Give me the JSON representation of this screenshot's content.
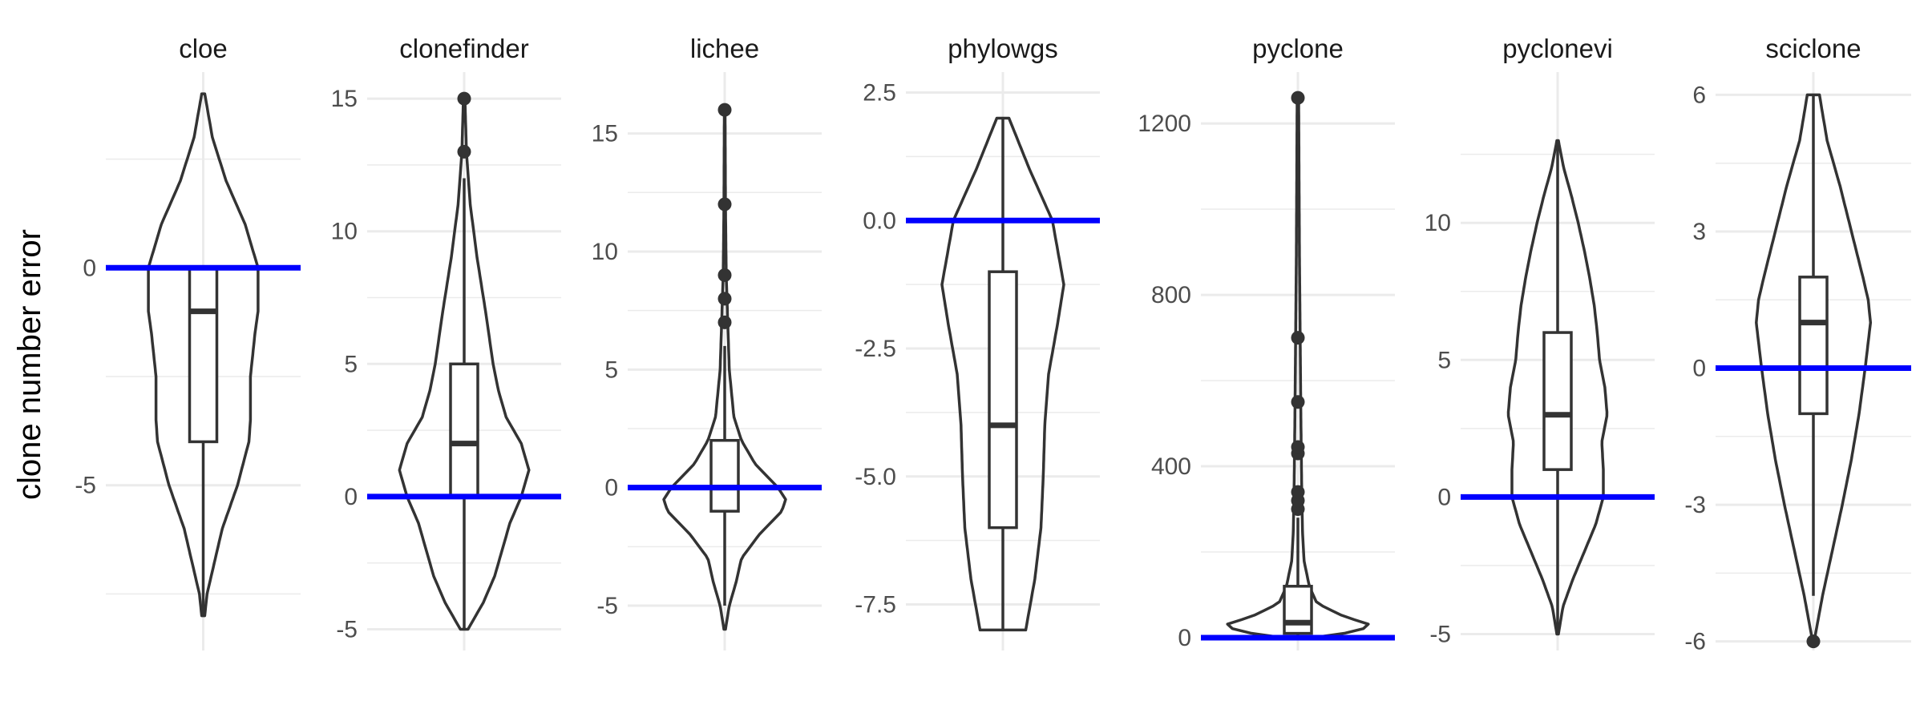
{
  "chart_data": {
    "type": "violin",
    "ylabel": "clone number error",
    "reference_line": {
      "y": 0,
      "color": "#0000ff"
    },
    "colors": {
      "outline": "#333333",
      "grid": "#ebebeb"
    },
    "grid": true,
    "facets": [
      {
        "name": "cloe",
        "ylim": [
          -8.8,
          4.5
        ],
        "ticks": [
          0,
          -5
        ],
        "tick_labels": [
          "0",
          "-5"
        ],
        "minor_ticks": [
          2.5,
          -2.5,
          -7.5
        ],
        "violin": {
          "min": -8,
          "max": 4,
          "profile": [
            [
              -8,
              0.02
            ],
            [
              -7.5,
              0.05
            ],
            [
              -6,
              0.25
            ],
            [
              -5,
              0.45
            ],
            [
              -4,
              0.6
            ],
            [
              -3.5,
              0.62
            ],
            [
              -2.5,
              0.62
            ],
            [
              -1.5,
              0.68
            ],
            [
              -1,
              0.72
            ],
            [
              0,
              0.72
            ],
            [
              1,
              0.55
            ],
            [
              2,
              0.3
            ],
            [
              3,
              0.12
            ],
            [
              4,
              0.02
            ]
          ]
        },
        "box": {
          "q1": -4,
          "median": -1,
          "q3": 0,
          "lower": -8,
          "upper": 0
        },
        "outliers": []
      },
      {
        "name": "clonefinder",
        "ylim": [
          -5.8,
          16
        ],
        "ticks": [
          15,
          10,
          5,
          0,
          -5
        ],
        "tick_labels": [
          "15",
          "10",
          "5",
          "0",
          "-5"
        ],
        "minor_ticks": [
          12.5,
          7.5,
          2.5,
          -2.5
        ],
        "violin": {
          "min": -5,
          "max": 15,
          "profile": [
            [
              -5,
              0.05
            ],
            [
              -4,
              0.25
            ],
            [
              -3,
              0.4
            ],
            [
              -2,
              0.5
            ],
            [
              -1,
              0.6
            ],
            [
              0,
              0.75
            ],
            [
              1,
              0.85
            ],
            [
              2,
              0.75
            ],
            [
              3,
              0.55
            ],
            [
              4,
              0.45
            ],
            [
              5,
              0.38
            ],
            [
              7,
              0.28
            ],
            [
              9,
              0.17
            ],
            [
              11,
              0.08
            ],
            [
              13,
              0.03
            ],
            [
              15,
              0.01
            ]
          ]
        },
        "box": {
          "q1": 0,
          "median": 2,
          "q3": 5,
          "lower": -5,
          "upper": 12
        },
        "outliers": [
          13,
          15
        ]
      },
      {
        "name": "lichee",
        "ylim": [
          -6.9,
          17.6
        ],
        "ticks": [
          15,
          10,
          5,
          0,
          -5
        ],
        "tick_labels": [
          "15",
          "10",
          "5",
          "0",
          "-5"
        ],
        "minor_ticks": [
          12.5,
          7.5,
          2.5,
          -2.5
        ],
        "violin": {
          "min": -6,
          "max": 16,
          "profile": [
            [
              -6,
              0.01
            ],
            [
              -5,
              0.06
            ],
            [
              -4,
              0.15
            ],
            [
              -3,
              0.22
            ],
            [
              -2,
              0.45
            ],
            [
              -1,
              0.75
            ],
            [
              -0.5,
              0.8
            ],
            [
              0,
              0.7
            ],
            [
              1,
              0.4
            ],
            [
              2,
              0.22
            ],
            [
              3,
              0.12
            ],
            [
              5,
              0.06
            ],
            [
              7,
              0.04
            ],
            [
              9,
              0.02
            ],
            [
              12,
              0.01
            ],
            [
              16,
              0.005
            ]
          ]
        },
        "box": {
          "q1": -1,
          "median": 0,
          "q3": 2,
          "lower": -5,
          "upper": 6
        },
        "outliers": [
          7,
          8,
          9,
          12,
          16
        ]
      },
      {
        "name": "phylowgs",
        "ylim": [
          -8.4,
          2.9
        ],
        "ticks": [
          2.5,
          0,
          -2.5,
          -5,
          -7.5
        ],
        "tick_labels": [
          "2.5",
          "0.0",
          "-2.5",
          "-5.0",
          "-7.5"
        ],
        "minor_ticks": [
          1.25,
          -1.25,
          -3.75,
          -6.25
        ],
        "violin": {
          "min": -8,
          "max": 2,
          "profile": [
            [
              -8,
              0.3
            ],
            [
              -7,
              0.42
            ],
            [
              -6,
              0.5
            ],
            [
              -5,
              0.53
            ],
            [
              -4,
              0.55
            ],
            [
              -3,
              0.6
            ],
            [
              -2,
              0.72
            ],
            [
              -1.25,
              0.8
            ],
            [
              0,
              0.65
            ],
            [
              1,
              0.35
            ],
            [
              2,
              0.08
            ]
          ]
        },
        "box": {
          "q1": -6,
          "median": -4,
          "q3": -1,
          "lower": -8,
          "upper": 2
        },
        "outliers": []
      },
      {
        "name": "pyclone",
        "ylim": [
          -30,
          1320
        ],
        "ticks": [
          1200,
          800,
          400,
          0
        ],
        "tick_labels": [
          "1200",
          "800",
          "400",
          "0"
        ],
        "minor_ticks": [
          1000,
          600,
          200
        ],
        "violin": {
          "min": 0,
          "max": 1260,
          "profile": [
            [
              0,
              0.2
            ],
            [
              15,
              0.8
            ],
            [
              30,
              0.95
            ],
            [
              50,
              0.6
            ],
            [
              80,
              0.25
            ],
            [
              120,
              0.15
            ],
            [
              180,
              0.08
            ],
            [
              250,
              0.06
            ],
            [
              350,
              0.05
            ],
            [
              500,
              0.04
            ],
            [
              700,
              0.03
            ],
            [
              900,
              0.02
            ],
            [
              1260,
              0.01
            ]
          ]
        },
        "box": {
          "q1": 10,
          "median": 35,
          "q3": 120,
          "lower": 0,
          "upper": 280
        },
        "outliers": [
          300,
          320,
          340,
          430,
          445,
          550,
          700,
          1260
        ]
      },
      {
        "name": "pyclonevi",
        "ylim": [
          -5.6,
          15.5
        ],
        "ticks": [
          10,
          5,
          0,
          -5
        ],
        "tick_labels": [
          "10",
          "5",
          "0",
          "-5"
        ],
        "minor_ticks": [
          12.5,
          7.5,
          2.5,
          -2.5
        ],
        "violin": {
          "min": -5,
          "max": 13,
          "profile": [
            [
              -5,
              0.01
            ],
            [
              -4,
              0.07
            ],
            [
              -3,
              0.2
            ],
            [
              -2,
              0.35
            ],
            [
              -1,
              0.5
            ],
            [
              0,
              0.6
            ],
            [
              1,
              0.6
            ],
            [
              2,
              0.58
            ],
            [
              3,
              0.65
            ],
            [
              4,
              0.62
            ],
            [
              5,
              0.55
            ],
            [
              6,
              0.52
            ],
            [
              7,
              0.48
            ],
            [
              8,
              0.42
            ],
            [
              9,
              0.35
            ],
            [
              10,
              0.27
            ],
            [
              11,
              0.18
            ],
            [
              12,
              0.08
            ],
            [
              13,
              0.01
            ]
          ]
        },
        "box": {
          "q1": 1,
          "median": 3,
          "q3": 6,
          "lower": -5,
          "upper": 13
        },
        "outliers": []
      },
      {
        "name": "sciclone",
        "ylim": [
          -6.2,
          6.5
        ],
        "ticks": [
          6,
          3,
          0,
          -3,
          -6
        ],
        "tick_labels": [
          "6",
          "3",
          "0",
          "-3",
          "-6"
        ],
        "minor_ticks": [
          4.5,
          1.5,
          -1.5,
          -4.5
        ],
        "violin": {
          "min": -6,
          "max": 6,
          "profile": [
            [
              -6,
              0.01
            ],
            [
              -5,
              0.12
            ],
            [
              -4,
              0.25
            ],
            [
              -3,
              0.38
            ],
            [
              -2,
              0.5
            ],
            [
              -1,
              0.6
            ],
            [
              0,
              0.68
            ],
            [
              1,
              0.75
            ],
            [
              1.5,
              0.72
            ],
            [
              2,
              0.65
            ],
            [
              3,
              0.5
            ],
            [
              4,
              0.35
            ],
            [
              5,
              0.18
            ],
            [
              6,
              0.08
            ]
          ]
        },
        "box": {
          "q1": -1,
          "median": 1,
          "q3": 2,
          "lower": -5,
          "upper": 6
        },
        "outliers": [
          -6
        ]
      }
    ]
  }
}
